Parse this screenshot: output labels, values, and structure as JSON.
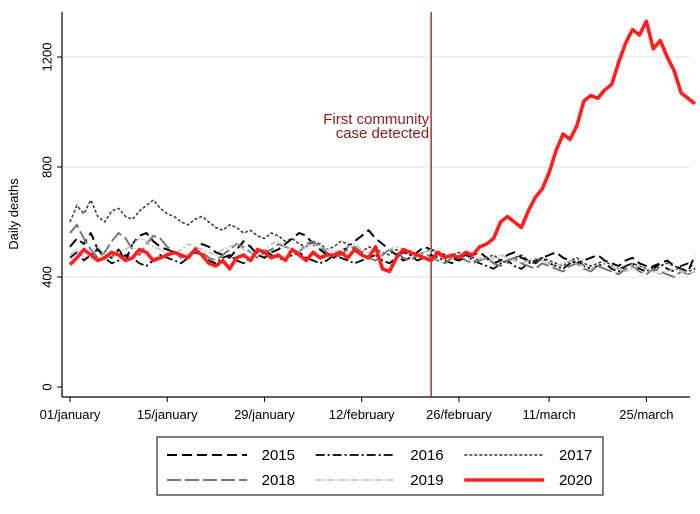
{
  "chart_data": {
    "type": "line",
    "ylabel": "Daily deaths",
    "ylim": [
      0,
      1400
    ],
    "yticks": [
      0,
      400,
      800,
      1200
    ],
    "xlim": [
      1,
      91
    ],
    "xticks": [
      {
        "day": 1,
        "label": "01/january"
      },
      {
        "day": 15,
        "label": "15/january"
      },
      {
        "day": 29,
        "label": "29/january"
      },
      {
        "day": 43,
        "label": "12/february"
      },
      {
        "day": 57,
        "label": "26/february"
      },
      {
        "day": 70,
        "label": "11/march"
      },
      {
        "day": 84,
        "label": "25/march"
      }
    ],
    "grid": true,
    "legend_position": "bottom",
    "annotation": {
      "day": 53,
      "line1": "First community",
      "line2": "case detected",
      "color": "#8b1a1a"
    },
    "series": [
      {
        "name": "2015",
        "color": "#000000",
        "values": [
          510,
          540,
          520,
          560,
          500,
          480,
          470,
          500,
          460,
          520,
          550,
          560,
          530,
          510,
          500,
          490,
          480,
          470,
          500,
          520,
          510,
          490,
          480,
          470,
          500,
          530,
          510,
          480,
          470,
          490,
          500,
          520,
          540,
          560,
          550,
          520,
          500,
          480,
          470,
          490,
          510,
          530,
          550,
          570,
          540,
          520,
          500,
          480,
          460,
          470,
          490,
          510,
          500,
          490,
          480,
          470,
          460,
          470,
          480,
          490,
          470,
          450,
          460,
          480,
          490,
          470,
          460,
          450,
          470,
          480,
          490,
          470,
          460,
          450,
          460,
          470,
          480,
          460,
          450,
          440,
          460,
          470,
          450,
          440,
          430,
          450,
          460,
          440,
          430,
          420,
          480
        ]
      },
      {
        "name": "2016",
        "color": "#000000",
        "values": [
          470,
          490,
          460,
          480,
          500,
          470,
          450,
          460,
          480,
          470,
          450,
          440,
          460,
          480,
          470,
          460,
          450,
          470,
          490,
          480,
          460,
          450,
          470,
          480,
          460,
          450,
          470,
          490,
          500,
          480,
          470,
          460,
          480,
          490,
          470,
          460,
          450,
          460,
          480,
          470,
          460,
          450,
          460,
          470,
          480,
          460,
          450,
          470,
          490,
          480,
          460,
          470,
          480,
          470,
          460,
          450,
          470,
          480,
          460,
          450,
          440,
          430,
          450,
          460,
          440,
          430,
          450,
          460,
          470,
          450,
          440,
          430,
          450,
          460,
          440,
          430,
          440,
          450,
          430,
          420,
          440,
          450,
          430,
          420,
          440,
          450,
          430,
          420,
          440,
          450,
          430
        ]
      },
      {
        "name": "2017",
        "color": "#333333",
        "values": [
          600,
          660,
          630,
          680,
          620,
          600,
          640,
          650,
          620,
          610,
          640,
          660,
          680,
          650,
          630,
          620,
          600,
          590,
          610,
          620,
          600,
          580,
          570,
          590,
          580,
          560,
          570,
          550,
          540,
          560,
          550,
          530,
          540,
          520,
          510,
          530,
          520,
          500,
          510,
          530,
          520,
          500,
          490,
          510,
          500,
          490,
          480,
          500,
          490,
          480,
          470,
          490,
          500,
          480,
          470,
          480,
          490,
          480,
          470,
          460,
          470,
          480,
          460,
          450,
          470,
          480,
          460,
          450,
          470,
          460,
          450,
          440,
          460,
          470,
          450,
          440,
          450,
          460,
          440,
          430,
          440,
          450,
          440,
          430,
          420,
          440,
          450,
          440,
          430,
          420,
          430
        ]
      },
      {
        "name": "2018",
        "color": "#777777",
        "values": [
          560,
          590,
          540,
          500,
          470,
          490,
          530,
          560,
          540,
          500,
          480,
          520,
          550,
          540,
          510,
          490,
          470,
          480,
          500,
          490,
          470,
          460,
          480,
          500,
          520,
          510,
          490,
          470,
          490,
          500,
          520,
          510,
          500,
          490,
          520,
          530,
          510,
          490,
          470,
          480,
          500,
          510,
          490,
          470,
          460,
          480,
          500,
          490,
          470,
          460,
          480,
          490,
          470,
          460,
          450,
          470,
          480,
          460,
          450,
          460,
          470,
          450,
          440,
          460,
          470,
          450,
          440,
          430,
          450,
          440,
          430,
          420,
          440,
          450,
          430,
          420,
          440,
          430,
          420,
          410,
          430,
          440,
          420,
          410,
          430,
          420,
          410,
          400,
          420,
          410,
          420
        ]
      },
      {
        "name": "2019",
        "color": "#bbbbbb",
        "values": [
          480,
          500,
          470,
          490,
          510,
          480,
          470,
          490,
          500,
          520,
          540,
          530,
          510,
          500,
          490,
          480,
          500,
          520,
          510,
          500,
          490,
          480,
          500,
          510,
          520,
          500,
          490,
          480,
          500,
          520,
          530,
          510,
          500,
          490,
          510,
          520,
          510,
          500,
          490,
          500,
          510,
          520,
          500,
          490,
          480,
          490,
          500,
          510,
          500,
          490,
          480,
          490,
          500,
          490,
          480,
          470,
          480,
          490,
          480,
          470,
          460,
          470,
          480,
          470,
          460,
          450,
          460,
          470,
          460,
          450,
          440,
          450,
          460,
          450,
          440,
          430,
          440,
          450,
          440,
          430,
          420,
          430,
          440,
          430,
          420,
          410,
          420,
          430,
          420,
          410,
          420
        ]
      },
      {
        "name": "2020",
        "color": "#ff1f1f",
        "values": [
          445,
          470,
          500,
          480,
          460,
          470,
          490,
          480,
          460,
          470,
          500,
          490,
          460,
          470,
          480,
          490,
          480,
          470,
          500,
          480,
          450,
          440,
          460,
          430,
          470,
          480,
          460,
          500,
          490,
          470,
          480,
          460,
          500,
          480,
          460,
          490,
          470,
          480,
          480,
          490,
          470,
          500,
          480,
          470,
          510,
          430,
          420,
          470,
          500,
          490,
          480,
          470,
          460,
          490,
          470,
          480,
          470,
          490,
          480,
          510,
          520,
          540,
          600,
          620,
          600,
          580,
          640,
          690,
          720,
          780,
          860,
          920,
          900,
          950,
          1040,
          1060,
          1050,
          1080,
          1100,
          1180,
          1250,
          1300,
          1280,
          1330,
          1230,
          1260,
          1200,
          1150,
          1070,
          1050,
          1030
        ]
      }
    ]
  }
}
